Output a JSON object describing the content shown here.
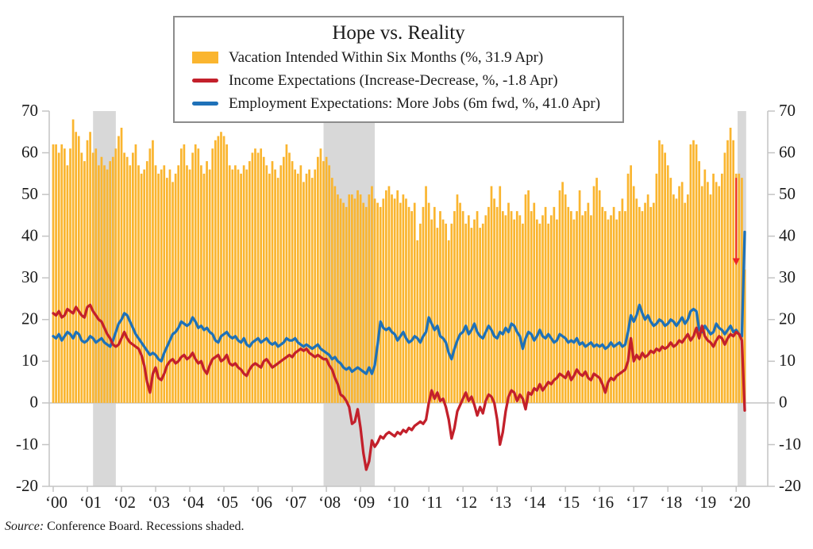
{
  "legend": {
    "title": "Hope vs. Reality",
    "items": [
      {
        "id": "vacation",
        "label": "Vacation Intended Within Six Months (%, 31.9 Apr)",
        "color": "#FAB52F"
      },
      {
        "id": "income",
        "label": "Income Expectations (Increase-Decrease, %, -1.8 Apr)",
        "color": "#C3202B"
      },
      {
        "id": "employment",
        "label": "Employment Expectations: More Jobs (6m fwd, %, 41.0 Apr)",
        "color": "#1E71B8"
      }
    ]
  },
  "source_note": {
    "prefix": "Source:",
    "text": " Conference Board. Recessions shaded."
  },
  "chart_data": {
    "type": "bar+line",
    "frequency": "monthly",
    "x_start": "2000-01",
    "x_end": "2020-04",
    "ylim": [
      -20,
      70
    ],
    "yticks": [
      -20,
      -10,
      0,
      10,
      20,
      30,
      40,
      50,
      60,
      70
    ],
    "x_tick_labels": [
      "‘00",
      "‘01",
      "‘02",
      "‘03",
      "‘04",
      "‘05",
      "‘06",
      "‘07",
      "‘08",
      "‘09",
      "‘10",
      "‘11",
      "‘12",
      "‘13",
      "‘14",
      "‘15",
      "‘16",
      "‘17",
      "‘18",
      "‘19",
      "‘20"
    ],
    "grid": false,
    "legend_position": "top",
    "colors": {
      "recession": "#D8D8D8",
      "axis": "#C4C4C4",
      "text": "#1a1a1a"
    },
    "recessions_month_ranges": [
      [
        14,
        22
      ],
      [
        95,
        113
      ],
      [
        240.5,
        243.5
      ]
    ],
    "annotation_arrow": {
      "month_index": 240,
      "from_value": 54,
      "to_value": 33,
      "color": "#EC2427"
    },
    "series": [
      {
        "id": "vacation",
        "name": "Vacation Intended Within Six Months (%)",
        "type": "bar",
        "color": "#FAB52F",
        "latest_label": "31.9 Apr",
        "values": [
          62,
          62,
          60,
          62,
          61,
          57,
          61,
          68,
          65,
          64,
          60,
          58,
          63,
          65,
          60,
          61,
          57,
          59,
          57,
          56,
          58,
          59,
          61,
          64,
          66,
          60,
          59,
          57,
          60,
          62,
          57,
          55,
          56,
          58,
          61,
          63,
          57,
          55,
          56,
          57,
          54,
          56,
          53,
          55,
          57,
          61,
          62,
          57,
          56,
          60,
          62,
          61,
          57,
          55,
          58,
          56,
          61,
          63,
          64,
          65,
          64,
          62,
          57,
          56,
          57,
          56,
          55,
          57,
          56,
          58,
          60,
          61,
          60,
          61,
          59,
          57,
          55,
          58,
          56,
          54,
          57,
          59,
          62,
          60,
          58,
          56,
          55,
          57,
          53,
          55,
          56,
          54,
          56,
          59,
          61,
          58,
          59,
          57,
          54,
          52,
          50,
          49,
          48,
          47,
          50,
          50,
          49,
          51,
          50,
          48,
          47,
          50,
          52,
          49,
          48,
          47,
          49,
          51,
          52,
          50,
          49,
          51,
          48,
          50,
          49,
          47,
          46,
          48,
          39,
          43,
          47,
          52,
          48,
          44,
          47,
          42,
          46,
          44,
          43,
          39,
          43,
          46,
          50,
          48,
          46,
          43,
          45,
          42,
          44,
          46,
          42,
          43,
          45,
          47,
          52,
          49,
          47,
          52,
          46,
          45,
          48,
          46,
          44,
          46,
          45,
          43,
          50,
          51,
          46,
          48,
          44,
          43,
          45,
          47,
          43,
          45,
          47,
          44,
          51,
          53,
          50,
          47,
          46,
          44,
          46,
          51,
          45,
          46,
          48,
          45,
          52,
          54,
          51,
          47,
          46,
          44,
          45,
          47,
          44,
          46,
          49,
          46,
          55,
          57,
          52,
          49,
          47,
          46,
          48,
          50,
          47,
          48,
          55,
          63,
          62,
          60,
          57,
          54,
          50,
          49,
          52,
          53,
          48,
          50,
          62,
          63,
          62,
          58,
          52,
          56,
          53,
          50,
          55,
          53,
          52,
          55,
          60,
          63,
          66,
          63,
          55,
          55,
          54,
          32
        ]
      },
      {
        "id": "income",
        "name": "Income Expectations (Increase-Decrease, %)",
        "type": "line",
        "color": "#C3202B",
        "latest_label": "-1.8 Apr",
        "values": [
          21.5,
          21,
          22,
          20.5,
          21,
          22.5,
          22,
          21.5,
          23,
          22,
          21,
          20.5,
          23,
          23.5,
          22,
          21,
          20,
          19.5,
          18,
          16.5,
          15.5,
          14,
          13.5,
          14,
          15.5,
          17,
          15.5,
          14.5,
          14,
          13.5,
          13,
          11.5,
          9,
          5,
          2.5,
          7,
          8.5,
          6,
          5.5,
          7,
          9,
          10,
          10.5,
          9.5,
          10,
          11,
          11.5,
          10.5,
          11,
          12,
          10.5,
          9.5,
          10,
          8,
          7,
          9,
          10.5,
          11,
          11.5,
          10,
          10.5,
          11.5,
          9.5,
          9,
          9.5,
          8.5,
          8,
          7,
          6.5,
          8,
          9,
          9.5,
          9,
          8.5,
          10,
          10.5,
          9.5,
          8.5,
          9,
          9.5,
          10,
          10.5,
          11,
          11.5,
          11,
          12,
          12.5,
          13,
          12.5,
          13,
          12,
          11.5,
          11,
          11.5,
          11,
          10.5,
          10.5,
          9,
          8,
          6,
          4.5,
          2,
          1.5,
          0.5,
          -1,
          -5,
          -4.5,
          -1.5,
          -6,
          -12,
          -16,
          -14,
          -9,
          -10.5,
          -9.5,
          -8,
          -8.5,
          -7.5,
          -7,
          -7.5,
          -8,
          -7,
          -7.5,
          -6.5,
          -7,
          -6,
          -6.5,
          -5.5,
          -5,
          -4.5,
          -5,
          -4,
          0,
          3,
          1,
          2.5,
          0.5,
          1,
          -1,
          -4,
          -8.5,
          -6,
          -2,
          -0.5,
          1,
          2.5,
          0.5,
          1.5,
          -0.5,
          -3,
          -1,
          -2.5,
          0.5,
          2,
          1.5,
          0,
          -4,
          -10,
          -7,
          -2,
          1.5,
          3,
          2.5,
          0.5,
          2,
          1,
          -1.5,
          2.5,
          2,
          3.5,
          3,
          4.5,
          3,
          4,
          5,
          4.5,
          5.5,
          6,
          7,
          6.5,
          6,
          7.5,
          5.5,
          6.5,
          8,
          7,
          6.5,
          7.5,
          6,
          5.5,
          7,
          6.5,
          6,
          4.5,
          2.5,
          5,
          6,
          5.5,
          6.5,
          7,
          7.5,
          8,
          10,
          15.5,
          10,
          11.5,
          10.5,
          12,
          11,
          11.5,
          12.5,
          12,
          13,
          12.5,
          13.5,
          13,
          13.5,
          14.5,
          13.5,
          14,
          15,
          14.5,
          15.5,
          16.5,
          15,
          16,
          18,
          15.5,
          18.5,
          16,
          15,
          14.5,
          13.5,
          15,
          16,
          15.5,
          14,
          15.5,
          16.5,
          16,
          17,
          16.5,
          15,
          -1.8
        ]
      },
      {
        "id": "employment",
        "name": "Employment Expectations: More Jobs (6m fwd, %)",
        "type": "line",
        "color": "#1E71B8",
        "latest_label": "41.0 Apr",
        "values": [
          16,
          15.5,
          16.5,
          15,
          16,
          17,
          16.5,
          15.5,
          17,
          16.5,
          15,
          14.5,
          15,
          16,
          15.5,
          14.5,
          15,
          15.5,
          14.5,
          14,
          13.5,
          15,
          17,
          19,
          20,
          21.5,
          21,
          19.5,
          18,
          16.5,
          15.5,
          14.5,
          13.5,
          12.5,
          11.5,
          12,
          11.5,
          10.5,
          10,
          12,
          13.5,
          15,
          16.5,
          17,
          18,
          19.5,
          19,
          18.5,
          19,
          20.5,
          19.5,
          18,
          18.5,
          17.5,
          18,
          17,
          16.5,
          15,
          14.5,
          16,
          16.5,
          17,
          16,
          15.5,
          16,
          15,
          14.5,
          15.5,
          14,
          13.5,
          14.5,
          15,
          15.5,
          14.5,
          15,
          15.5,
          14.5,
          14,
          14.5,
          13.5,
          14,
          14.5,
          15.5,
          15,
          15,
          15.5,
          14.5,
          14,
          13.5,
          14,
          13.5,
          13,
          13.5,
          14,
          13,
          12.5,
          12,
          11.5,
          10.5,
          11,
          10,
          9.5,
          8.5,
          8,
          8.5,
          7.5,
          8,
          8.5,
          8,
          7.5,
          7,
          8.5,
          7,
          9,
          14,
          19.5,
          18,
          17.5,
          18,
          17,
          16.5,
          15,
          16,
          17,
          15.5,
          14.5,
          15,
          16,
          15.5,
          14.5,
          16,
          17,
          20.5,
          19,
          17.5,
          18.5,
          16,
          15.5,
          14.5,
          12,
          10.5,
          13,
          15,
          16.5,
          17,
          18.5,
          16.5,
          17.5,
          19,
          17,
          16,
          15.5,
          17,
          18.5,
          17.5,
          16,
          15.5,
          17,
          16.5,
          18,
          17,
          19,
          18.5,
          17,
          16,
          13,
          15.5,
          17,
          16.5,
          15,
          16,
          17.5,
          16,
          15.5,
          16.5,
          15.5,
          14.5,
          15,
          16.5,
          16,
          15.5,
          14.5,
          15,
          14.5,
          15.5,
          14,
          14.5,
          13.5,
          14,
          14.5,
          13.5,
          14,
          13.5,
          14,
          13,
          13.5,
          14.5,
          13.5,
          14,
          14.5,
          13.5,
          14,
          17,
          21,
          19.5,
          21,
          23.5,
          21.5,
          20,
          21,
          19.5,
          18.5,
          19,
          20,
          19.5,
          18.5,
          19,
          20,
          19.5,
          18.5,
          19.5,
          20.5,
          19,
          20,
          22,
          22.5,
          22,
          17.5,
          17,
          18.5,
          17.5,
          16.5,
          17,
          19,
          18,
          17.5,
          16.5,
          17.5,
          18.5,
          17,
          17.5,
          16.5,
          16,
          41
        ]
      }
    ]
  }
}
